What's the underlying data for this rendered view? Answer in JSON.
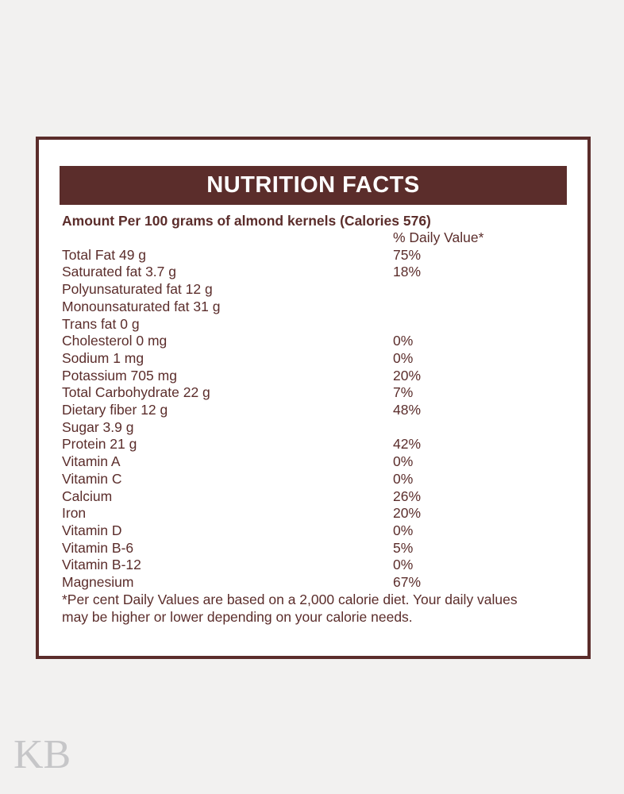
{
  "label": {
    "title": "NUTRITION FACTS",
    "serving_line": "Amount Per 100 grams of almond kernels (Calories 576)",
    "daily_value_header": "% Daily Value*",
    "rows": [
      {
        "name": "Total Fat 49 g",
        "dv": "75%"
      },
      {
        "name": "Saturated fat 3.7 g",
        "dv": "18%"
      },
      {
        "name": "Polyunsaturated fat 12 g",
        "dv": ""
      },
      {
        "name": "Monounsaturated fat 31 g",
        "dv": ""
      },
      {
        "name": "Trans fat 0 g",
        "dv": ""
      },
      {
        "name": "Cholesterol 0 mg",
        "dv": "0%"
      },
      {
        "name": "Sodium 1 mg",
        "dv": "0%"
      },
      {
        "name": "Potassium 705 mg",
        "dv": "20%"
      },
      {
        "name": "Total Carbohydrate 22 g",
        "dv": "7%"
      },
      {
        "name": "Dietary fiber 12 g",
        "dv": "48%"
      },
      {
        "name": "Sugar 3.9 g",
        "dv": ""
      },
      {
        "name": "Protein 21 g",
        "dv": "42%"
      },
      {
        "name": "Vitamin A",
        "dv": "0%"
      },
      {
        "name": "Vitamin C",
        "dv": "0%"
      },
      {
        "name": "Calcium",
        "dv": "26%"
      },
      {
        "name": "Iron",
        "dv": "20%"
      },
      {
        "name": "Vitamin D",
        "dv": "0%"
      },
      {
        "name": "Vitamin B-6",
        "dv": "5%"
      },
      {
        "name": "Vitamin B-12",
        "dv": "0%"
      },
      {
        "name": "Magnesium",
        "dv": "67%"
      }
    ],
    "footnote": "*Per cent Daily Values are based on a 2,000 calorie diet. Your daily values may be higher or lower depending on your calorie needs.",
    "colors": {
      "accent_maroon": "#5b2d2b",
      "label_background": "#ffffff",
      "page_background": "#f2f1f0",
      "title_text": "#ffffff",
      "watermark_gray": "#c6c6c8"
    }
  },
  "watermark": "KB"
}
